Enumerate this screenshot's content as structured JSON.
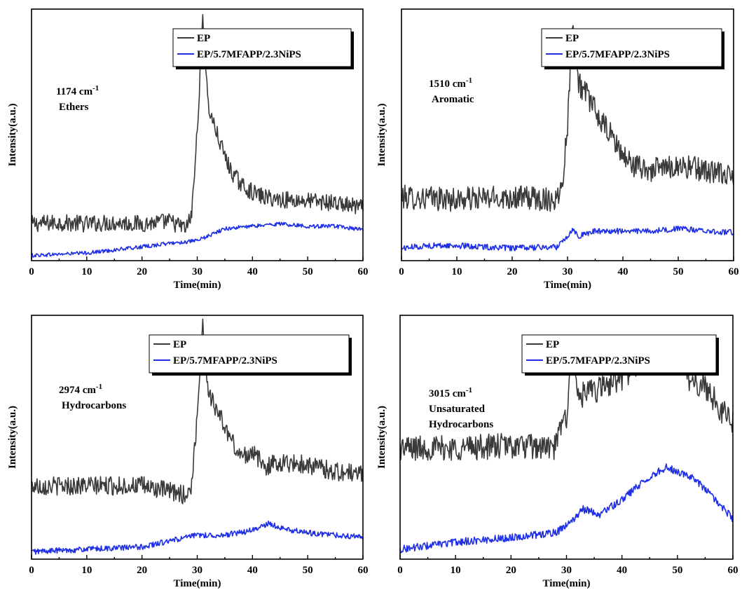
{
  "colors": {
    "ep": "#3a3a3a",
    "ep_mod": "#1f2fe6"
  },
  "chart_data": [
    {
      "type": "line",
      "xlabel": "Time(min)",
      "ylabel": "Intensity(a.u.)",
      "xlim": [
        0,
        60
      ],
      "ylim": [
        0,
        1
      ],
      "x_ticks": [
        "0",
        "10",
        "20",
        "30",
        "40",
        "50",
        "60"
      ],
      "annotation": [
        "1174 cm",
        "Ethers"
      ],
      "annotation_sup": "-1",
      "legend_position": "top-right",
      "series": [
        {
          "name": "EP",
          "color": "#3a3a3a",
          "points": [
            [
              0,
              0.14
            ],
            [
              5,
              0.145
            ],
            [
              10,
              0.14
            ],
            [
              15,
              0.145
            ],
            [
              20,
              0.14
            ],
            [
              25,
              0.15
            ],
            [
              28,
              0.12
            ],
            [
              29,
              0.18
            ],
            [
              30,
              0.52
            ],
            [
              31,
              1.0
            ],
            [
              32,
              0.62
            ],
            [
              34,
              0.48
            ],
            [
              36,
              0.36
            ],
            [
              38,
              0.3
            ],
            [
              40,
              0.27
            ],
            [
              42,
              0.25
            ],
            [
              45,
              0.24
            ],
            [
              50,
              0.235
            ],
            [
              55,
              0.225
            ],
            [
              60,
              0.205
            ]
          ],
          "noise": 0.035
        },
        {
          "name": "EP/5.7MFAPP/2.3NiPS",
          "color": "#1f2fe6",
          "points": [
            [
              0,
              0.01
            ],
            [
              10,
              0.02
            ],
            [
              20,
              0.045
            ],
            [
              25,
              0.06
            ],
            [
              30,
              0.07
            ],
            [
              35,
              0.12
            ],
            [
              40,
              0.13
            ],
            [
              45,
              0.14
            ],
            [
              50,
              0.13
            ],
            [
              55,
              0.13
            ],
            [
              60,
              0.115
            ]
          ],
          "noise": 0.008
        }
      ]
    },
    {
      "type": "line",
      "xlabel": "Time(min)",
      "ylabel": "Intensity(a.u.)",
      "xlim": [
        0,
        60
      ],
      "ylim": [
        0,
        1
      ],
      "x_ticks": [
        "0",
        "10",
        "20",
        "30",
        "40",
        "50",
        "60"
      ],
      "annotation": [
        "1510 cm",
        "Aromatic"
      ],
      "annotation_sup": "-1",
      "legend_position": "top-right",
      "series": [
        {
          "name": "EP",
          "color": "#3a3a3a",
          "points": [
            [
              0,
              0.25
            ],
            [
              10,
              0.24
            ],
            [
              20,
              0.25
            ],
            [
              28,
              0.24
            ],
            [
              29,
              0.3
            ],
            [
              30,
              0.55
            ],
            [
              31,
              1.0
            ],
            [
              32,
              0.72
            ],
            [
              34,
              0.65
            ],
            [
              36,
              0.56
            ],
            [
              38,
              0.5
            ],
            [
              40,
              0.42
            ],
            [
              42,
              0.38
            ],
            [
              45,
              0.36
            ],
            [
              50,
              0.38
            ],
            [
              55,
              0.36
            ],
            [
              60,
              0.33
            ]
          ],
          "noise": 0.05
        },
        {
          "name": "EP/5.7MFAPP/2.3NiPS",
          "color": "#1f2fe6",
          "points": [
            [
              0,
              0.04
            ],
            [
              5,
              0.05
            ],
            [
              10,
              0.05
            ],
            [
              20,
              0.04
            ],
            [
              28,
              0.045
            ],
            [
              30,
              0.09
            ],
            [
              31,
              0.12
            ],
            [
              32,
              0.09
            ],
            [
              35,
              0.11
            ],
            [
              40,
              0.11
            ],
            [
              45,
              0.11
            ],
            [
              50,
              0.12
            ],
            [
              55,
              0.11
            ],
            [
              60,
              0.105
            ]
          ],
          "noise": 0.012
        }
      ]
    },
    {
      "type": "line",
      "xlabel": "Time(min)",
      "ylabel": "Intensity(a.u.)",
      "xlim": [
        0,
        60
      ],
      "ylim": [
        0,
        1
      ],
      "x_ticks": [
        "0",
        "10",
        "20",
        "30",
        "40",
        "50",
        "60"
      ],
      "annotation": [
        "2974 cm",
        "Hydrocarbons"
      ],
      "annotation_sup": "-1",
      "legend_position": "top-right",
      "series": [
        {
          "name": "EP",
          "color": "#3a3a3a",
          "points": [
            [
              0,
              0.3
            ],
            [
              10,
              0.3
            ],
            [
              20,
              0.3
            ],
            [
              28,
              0.26
            ],
            [
              29,
              0.3
            ],
            [
              30,
              0.6
            ],
            [
              31,
              1.0
            ],
            [
              32,
              0.7
            ],
            [
              34,
              0.6
            ],
            [
              36,
              0.5
            ],
            [
              38,
              0.42
            ],
            [
              40,
              0.45
            ],
            [
              42,
              0.38
            ],
            [
              45,
              0.4
            ],
            [
              50,
              0.39
            ],
            [
              55,
              0.36
            ],
            [
              60,
              0.35
            ]
          ],
          "noise": 0.04
        },
        {
          "name": "EP/5.7MFAPP/2.3NiPS",
          "color": "#1f2fe6",
          "points": [
            [
              0,
              0.02
            ],
            [
              10,
              0.03
            ],
            [
              20,
              0.04
            ],
            [
              30,
              0.09
            ],
            [
              35,
              0.09
            ],
            [
              40,
              0.11
            ],
            [
              43,
              0.14
            ],
            [
              45,
              0.12
            ],
            [
              50,
              0.1
            ],
            [
              55,
              0.09
            ],
            [
              60,
              0.08
            ]
          ],
          "noise": 0.012
        }
      ]
    },
    {
      "type": "line",
      "xlabel": "Time(min)",
      "ylabel": "Intensity(a.u.)",
      "xlim": [
        0,
        60
      ],
      "ylim": [
        0,
        1
      ],
      "x_ticks": [
        "0",
        "10",
        "20",
        "30",
        "40",
        "50",
        "60"
      ],
      "annotation": [
        "3015 cm",
        "Unsaturated",
        "Hydrocarbons"
      ],
      "annotation_sup": "-1",
      "legend_position": "top-right",
      "series": [
        {
          "name": "EP",
          "color": "#3a3a3a",
          "points": [
            [
              0,
              0.46
            ],
            [
              10,
              0.46
            ],
            [
              20,
              0.47
            ],
            [
              28,
              0.46
            ],
            [
              29,
              0.55
            ],
            [
              30,
              0.6
            ],
            [
              31,
              0.88
            ],
            [
              32,
              0.68
            ],
            [
              35,
              0.7
            ],
            [
              40,
              0.76
            ],
            [
              45,
              0.85
            ],
            [
              48,
              0.84
            ],
            [
              50,
              0.85
            ],
            [
              52,
              0.76
            ],
            [
              55,
              0.72
            ],
            [
              58,
              0.62
            ],
            [
              60,
              0.56
            ]
          ],
          "noise": 0.055
        },
        {
          "name": "EP/5.7MFAPP/2.3NiPS",
          "color": "#1f2fe6",
          "points": [
            [
              0,
              0.03
            ],
            [
              10,
              0.06
            ],
            [
              20,
              0.08
            ],
            [
              28,
              0.1
            ],
            [
              30,
              0.13
            ],
            [
              33,
              0.2
            ],
            [
              36,
              0.18
            ],
            [
              40,
              0.24
            ],
            [
              44,
              0.32
            ],
            [
              48,
              0.38
            ],
            [
              50,
              0.36
            ],
            [
              53,
              0.33
            ],
            [
              56,
              0.26
            ],
            [
              60,
              0.16
            ]
          ],
          "noise": 0.016
        }
      ]
    }
  ]
}
